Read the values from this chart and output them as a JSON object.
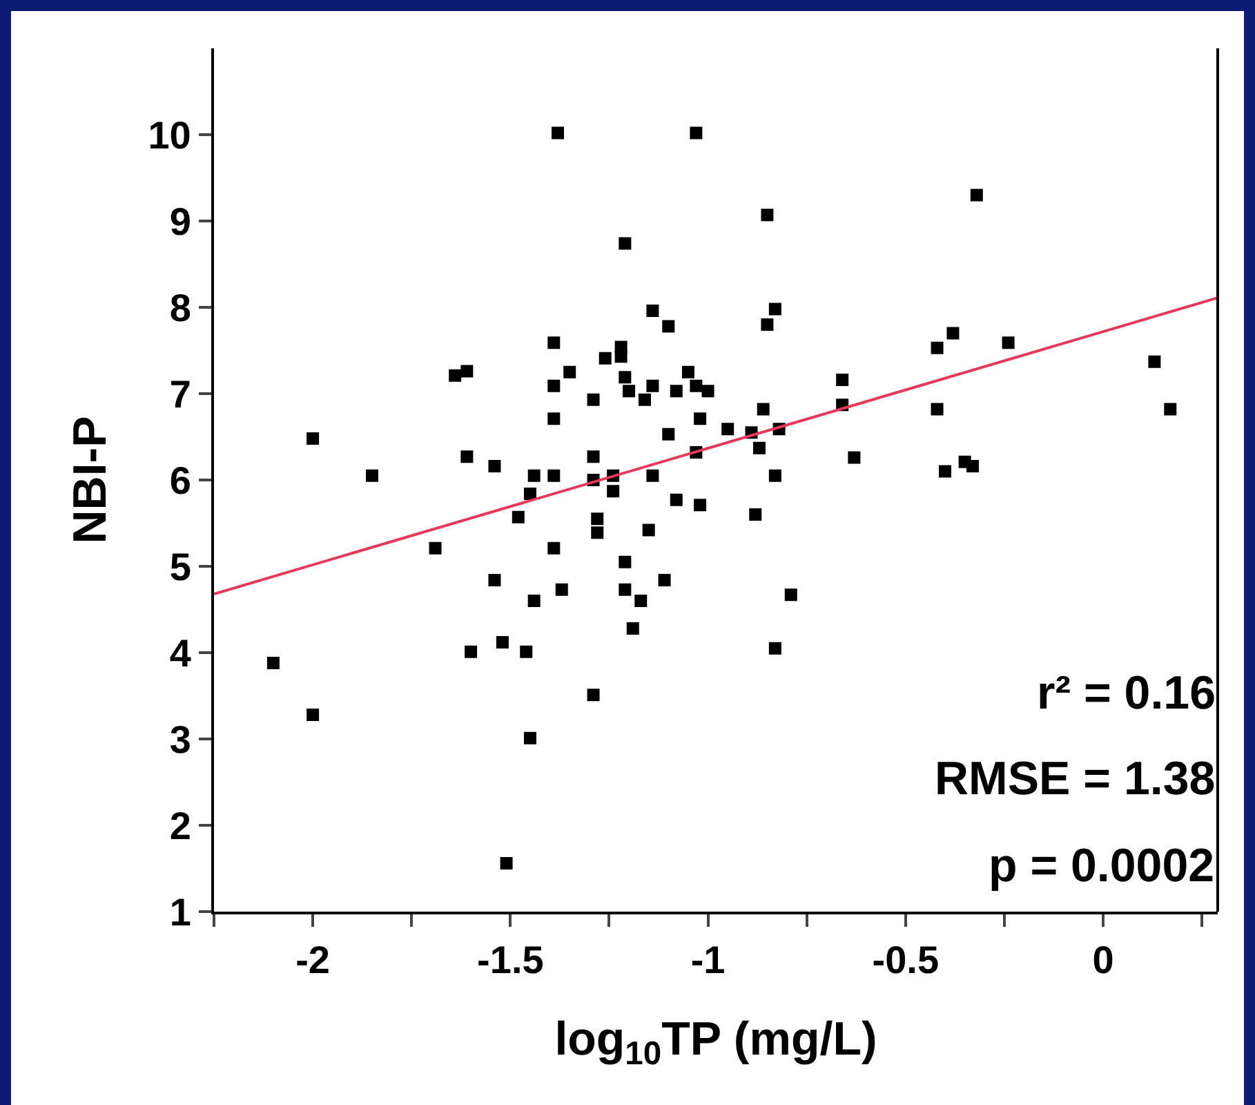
{
  "chart_data": {
    "type": "scatter",
    "xlabel": "log$_{10}$TP (mg/L)",
    "ylabel": "NBI-P",
    "xlim": [
      -2.25,
      0.29
    ],
    "ylim": [
      1,
      11
    ],
    "xticks": [
      {
        "value": -2.25,
        "label": null
      },
      -2,
      {
        "value": -1.75,
        "label": null
      },
      -1.5,
      {
        "value": -1.25,
        "label": null
      },
      -1,
      {
        "value": -0.75,
        "label": null
      },
      -0.5,
      {
        "value": -0.25,
        "label": null
      },
      0,
      {
        "value": 0.25,
        "label": null
      }
    ],
    "yticks": [
      1,
      2,
      3,
      4,
      5,
      6,
      7,
      8,
      9,
      10
    ],
    "grid": false,
    "annotations": [
      "r² = 0.16",
      "RMSE = 1.38",
      "p = 0.0002"
    ],
    "series": [
      {
        "marker": "square",
        "color": "#000000",
        "x": [
          -2.1,
          -2.0,
          -2.0,
          -1.85,
          -1.69,
          -1.64,
          -1.61,
          -1.61,
          -1.6,
          -1.54,
          -1.54,
          -1.52,
          -1.51,
          -1.48,
          -1.46,
          -1.45,
          -1.45,
          -1.44,
          -1.44,
          -1.39,
          -1.39,
          -1.39,
          -1.39,
          -1.39,
          -1.38,
          -1.37,
          -1.35,
          -1.29,
          -1.29,
          -1.29,
          -1.29,
          -1.28,
          -1.28,
          -1.26,
          -1.24,
          -1.24,
          -1.22,
          -1.22,
          -1.21,
          -1.21,
          -1.2,
          -1.21,
          -1.21,
          -1.17,
          -1.19,
          -1.16,
          -1.14,
          -1.14,
          -1.15,
          -1.14,
          -1.1,
          -1.1,
          -1.11,
          -1.08,
          -1.08,
          -1.05,
          -1.03,
          -1.03,
          -1.03,
          -1.02,
          -1.02,
          -1.0,
          -0.95,
          -0.89,
          -0.88,
          -0.87,
          -0.86,
          -0.85,
          -0.85,
          -0.83,
          -0.82,
          -0.83,
          -0.83,
          -0.79,
          -0.66,
          -0.66,
          -0.63,
          -0.42,
          -0.38,
          -0.42,
          -0.4,
          -0.35,
          -0.33,
          -0.32,
          -0.24,
          0.13,
          0.17
        ],
        "values": [
          3.88,
          3.28,
          6.48,
          6.05,
          5.21,
          7.21,
          7.26,
          6.27,
          4.01,
          6.16,
          4.84,
          4.12,
          1.56,
          5.57,
          4.01,
          5.84,
          3.01,
          6.05,
          4.6,
          5.21,
          6.05,
          6.71,
          7.09,
          7.59,
          10.02,
          4.73,
          7.25,
          6.27,
          6.93,
          6.0,
          3.51,
          5.55,
          5.39,
          7.41,
          5.87,
          6.05,
          7.43,
          7.54,
          7.19,
          8.74,
          7.03,
          5.05,
          4.73,
          4.6,
          4.28,
          6.93,
          7.09,
          7.96,
          5.42,
          6.05,
          7.78,
          6.53,
          4.84,
          7.03,
          5.77,
          7.25,
          10.02,
          7.09,
          6.32,
          6.71,
          5.71,
          7.03,
          6.59,
          6.55,
          5.6,
          6.37,
          6.82,
          9.07,
          7.8,
          7.98,
          6.59,
          6.05,
          4.05,
          4.67,
          7.16,
          6.87,
          6.26,
          7.53,
          7.7,
          6.82,
          6.1,
          6.21,
          6.16,
          9.3,
          7.59,
          7.37,
          6.82
        ]
      },
      {
        "type": "line",
        "marker": "none",
        "line_style": "solid",
        "color": "#e8385a",
        "x": [
          -2.25,
          0.29
        ],
        "values": [
          4.68,
          8.11
        ]
      }
    ]
  }
}
